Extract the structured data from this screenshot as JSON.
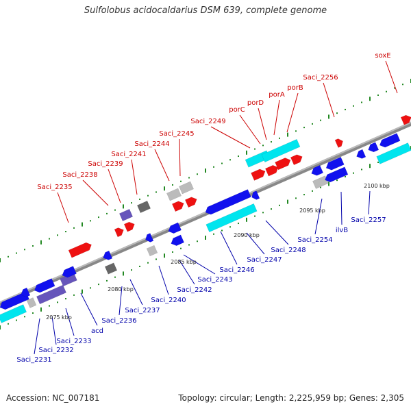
{
  "title": "Sulfolobus acidocaldarius DSM 639, complete genome",
  "footer": {
    "accession": "Accession: NC_007181",
    "summary": "Topology: circular; Length: 2,225,959 bp; Genes: 2,305"
  },
  "colors": {
    "forward": "#ee1111",
    "reverse": "#1111ee",
    "rna": "#00e5ee",
    "pseudo": "#bbbbbb",
    "dark": "#666666",
    "purple": "#6655bb",
    "backbone": "#888888",
    "forward_label": "#cc0000",
    "reverse_label": "#0000aa",
    "tick_dot": "#228822"
  },
  "scale_labels": [
    "2075 kbp",
    "2080 kbp",
    "2085 kbp",
    "2090 kbp",
    "2095 kbp",
    "2100 kbp"
  ],
  "forward_labels": [
    "Saci_2235",
    "Saci_2238",
    "Saci_2239",
    "Saci_2241",
    "Saci_2244",
    "Saci_2245",
    "Saci_2249",
    "porC",
    "porD",
    "porA",
    "porB",
    "Saci_2256",
    "soxE"
  ],
  "reverse_labels": [
    "Saci_2231",
    "Saci_2232",
    "Saci_2233",
    "acd",
    "Saci_2236",
    "Saci_2237",
    "Saci_2240",
    "Saci_2242",
    "Saci_2243",
    "Saci_2246",
    "Saci_2247",
    "Saci_2248",
    "Saci_2254",
    "ilvB",
    "Saci_2257"
  ]
}
